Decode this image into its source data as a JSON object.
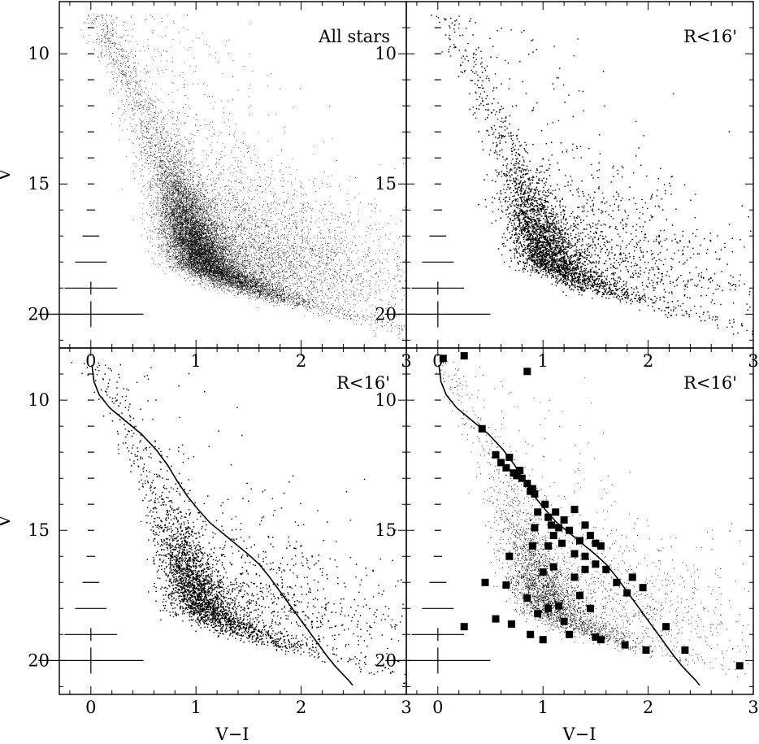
{
  "chart_data": [
    {
      "type": "scatter",
      "panel": "top-left",
      "label": "All stars",
      "xlabel": "",
      "ylabel": "V",
      "xlim": [
        -0.3,
        3.0
      ],
      "ylim": [
        21.3,
        8.0
      ],
      "y_inverted": true,
      "xticks": [
        "0",
        "1",
        "2",
        "3"
      ],
      "yticks": [
        "10",
        "15",
        "20"
      ],
      "density": "very high",
      "approx_points": 16000,
      "point_style": "small dots",
      "sequence_points": [
        [
          0.05,
          8.5
        ],
        [
          0.3,
          10.5
        ],
        [
          0.6,
          13.0
        ],
        [
          0.8,
          15.0
        ],
        [
          0.95,
          17.0
        ],
        [
          1.1,
          18.2
        ],
        [
          1.5,
          19.0
        ],
        [
          2.0,
          19.6
        ],
        [
          2.6,
          20.2
        ]
      ],
      "error_bars": [
        {
          "v": 9,
          "dx": 0.01
        },
        {
          "v": 10,
          "dx": 0.01
        },
        {
          "v": 11,
          "dx": 0.01
        },
        {
          "v": 12,
          "dx": 0.02
        },
        {
          "v": 13,
          "dx": 0.02
        },
        {
          "v": 14,
          "dx": 0.03
        },
        {
          "v": 15,
          "dx": 0.03
        },
        {
          "v": 16,
          "dx": 0.04
        },
        {
          "v": 17,
          "dx": 0.08
        },
        {
          "v": 18,
          "dx": 0.15
        },
        {
          "v": 19,
          "dx": 0.25
        },
        {
          "v": 20,
          "dx": 0.5
        }
      ]
    },
    {
      "type": "scatter",
      "panel": "top-right",
      "label": "R<16'",
      "xlabel": "",
      "ylabel": "",
      "xlim": [
        -0.3,
        3.0
      ],
      "ylim": [
        21.3,
        8.0
      ],
      "y_inverted": true,
      "xticks": [
        "0",
        "1",
        "2",
        "3"
      ],
      "yticks": [
        "10",
        "15",
        "20"
      ],
      "approx_points": 4000,
      "point_style": "dots"
    },
    {
      "type": "scatter",
      "panel": "bottom-left",
      "label": "R<16'",
      "xlabel": "V−I",
      "ylabel": "V",
      "xlim": [
        -0.3,
        3.0
      ],
      "ylim": [
        21.3,
        8.0
      ],
      "y_inverted": true,
      "xticks": [
        "0",
        "1",
        "2",
        "3"
      ],
      "yticks": [
        "10",
        "15",
        "20"
      ],
      "approx_points": 3500,
      "point_style": "dots",
      "isochrone": {
        "x": [
          0.01,
          0.03,
          0.08,
          0.18,
          0.33,
          0.48,
          0.62,
          0.73,
          0.82,
          0.92,
          1.02,
          1.13,
          1.25,
          1.37,
          1.49,
          1.6,
          1.7,
          1.79,
          1.88,
          1.97,
          2.06,
          2.15,
          2.24,
          2.32,
          2.39,
          2.45,
          2.49
        ],
        "v": [
          8.65,
          9.3,
          9.8,
          10.3,
          10.8,
          11.3,
          11.9,
          12.5,
          13.1,
          13.7,
          14.2,
          14.7,
          15.1,
          15.5,
          15.9,
          16.3,
          16.8,
          17.3,
          17.8,
          18.3,
          18.8,
          19.3,
          19.8,
          20.2,
          20.5,
          20.75,
          20.95
        ]
      }
    },
    {
      "type": "scatter",
      "panel": "bottom-right",
      "label": "R<16'",
      "xlabel": "V−I",
      "ylabel": "",
      "xlim": [
        -0.3,
        3.0
      ],
      "ylim": [
        21.3,
        8.0
      ],
      "y_inverted": true,
      "xticks": [
        "0",
        "1",
        "2",
        "3"
      ],
      "yticks": [
        "10",
        "15",
        "20"
      ],
      "approx_points": 4000,
      "point_style": "small dots plus filled squares",
      "highlighted_stars": [
        [
          0.05,
          8.4
        ],
        [
          0.25,
          8.3
        ],
        [
          0.85,
          8.9
        ],
        [
          0.42,
          11.1
        ],
        [
          0.55,
          12.1
        ],
        [
          0.6,
          12.4
        ],
        [
          0.65,
          12.6
        ],
        [
          0.68,
          12.2
        ],
        [
          0.72,
          12.8
        ],
        [
          0.75,
          12.9
        ],
        [
          0.8,
          13.0
        ],
        [
          0.78,
          12.7
        ],
        [
          0.85,
          13.2
        ],
        [
          0.88,
          13.5
        ],
        [
          0.9,
          13.4
        ],
        [
          0.92,
          13.6
        ],
        [
          0.95,
          14.3
        ],
        [
          0.92,
          14.9
        ],
        [
          1.02,
          14.0
        ],
        [
          1.05,
          14.5
        ],
        [
          1.08,
          14.8
        ],
        [
          1.12,
          14.3
        ],
        [
          1.15,
          14.9
        ],
        [
          1.2,
          14.6
        ],
        [
          1.25,
          15.0
        ],
        [
          1.3,
          14.2
        ],
        [
          1.35,
          15.4
        ],
        [
          1.4,
          14.8
        ],
        [
          1.45,
          15.2
        ],
        [
          1.5,
          15.5
        ],
        [
          1.55,
          15.6
        ],
        [
          1.1,
          15.2
        ],
        [
          1.05,
          15.6
        ],
        [
          1.18,
          15.5
        ],
        [
          1.3,
          15.9
        ],
        [
          1.4,
          16.0
        ],
        [
          1.5,
          16.3
        ],
        [
          1.6,
          16.5
        ],
        [
          1.7,
          17.0
        ],
        [
          1.8,
          17.4
        ],
        [
          1.95,
          17.2
        ],
        [
          1.85,
          16.8
        ],
        [
          2.17,
          18.7
        ],
        [
          2.35,
          19.6
        ],
        [
          2.87,
          20.2
        ],
        [
          0.25,
          18.7
        ],
        [
          0.45,
          17.0
        ],
        [
          0.55,
          18.4
        ],
        [
          0.68,
          16.0
        ],
        [
          0.65,
          17.1
        ],
        [
          0.7,
          18.6
        ],
        [
          0.85,
          17.6
        ],
        [
          0.88,
          19.0
        ],
        [
          0.95,
          18.2
        ],
        [
          1.0,
          19.2
        ],
        [
          1.05,
          18.0
        ],
        [
          1.1,
          16.4
        ],
        [
          1.15,
          17.9
        ],
        [
          1.2,
          18.5
        ],
        [
          1.25,
          19.0
        ],
        [
          1.3,
          16.8
        ],
        [
          1.35,
          17.5
        ],
        [
          1.45,
          18.0
        ],
        [
          1.5,
          19.1
        ],
        [
          1.55,
          19.2
        ],
        [
          1.78,
          19.4
        ],
        [
          1.98,
          19.6
        ],
        [
          0.9,
          15.6
        ],
        [
          1.0,
          16.6
        ],
        [
          1.4,
          16.5
        ]
      ],
      "isochrone": {
        "x": [
          0.01,
          0.03,
          0.08,
          0.18,
          0.33,
          0.48,
          0.62,
          0.73,
          0.82,
          0.92,
          1.02,
          1.13,
          1.25,
          1.37,
          1.49,
          1.6,
          1.7,
          1.79,
          1.88,
          1.97,
          2.06,
          2.15,
          2.24,
          2.32,
          2.39,
          2.45,
          2.49
        ],
        "v": [
          8.65,
          9.3,
          9.8,
          10.3,
          10.8,
          11.3,
          11.9,
          12.5,
          13.1,
          13.7,
          14.2,
          14.7,
          15.1,
          15.5,
          15.9,
          16.3,
          16.8,
          17.3,
          17.8,
          18.3,
          18.8,
          19.3,
          19.8,
          20.2,
          20.5,
          20.75,
          20.95
        ]
      }
    }
  ]
}
